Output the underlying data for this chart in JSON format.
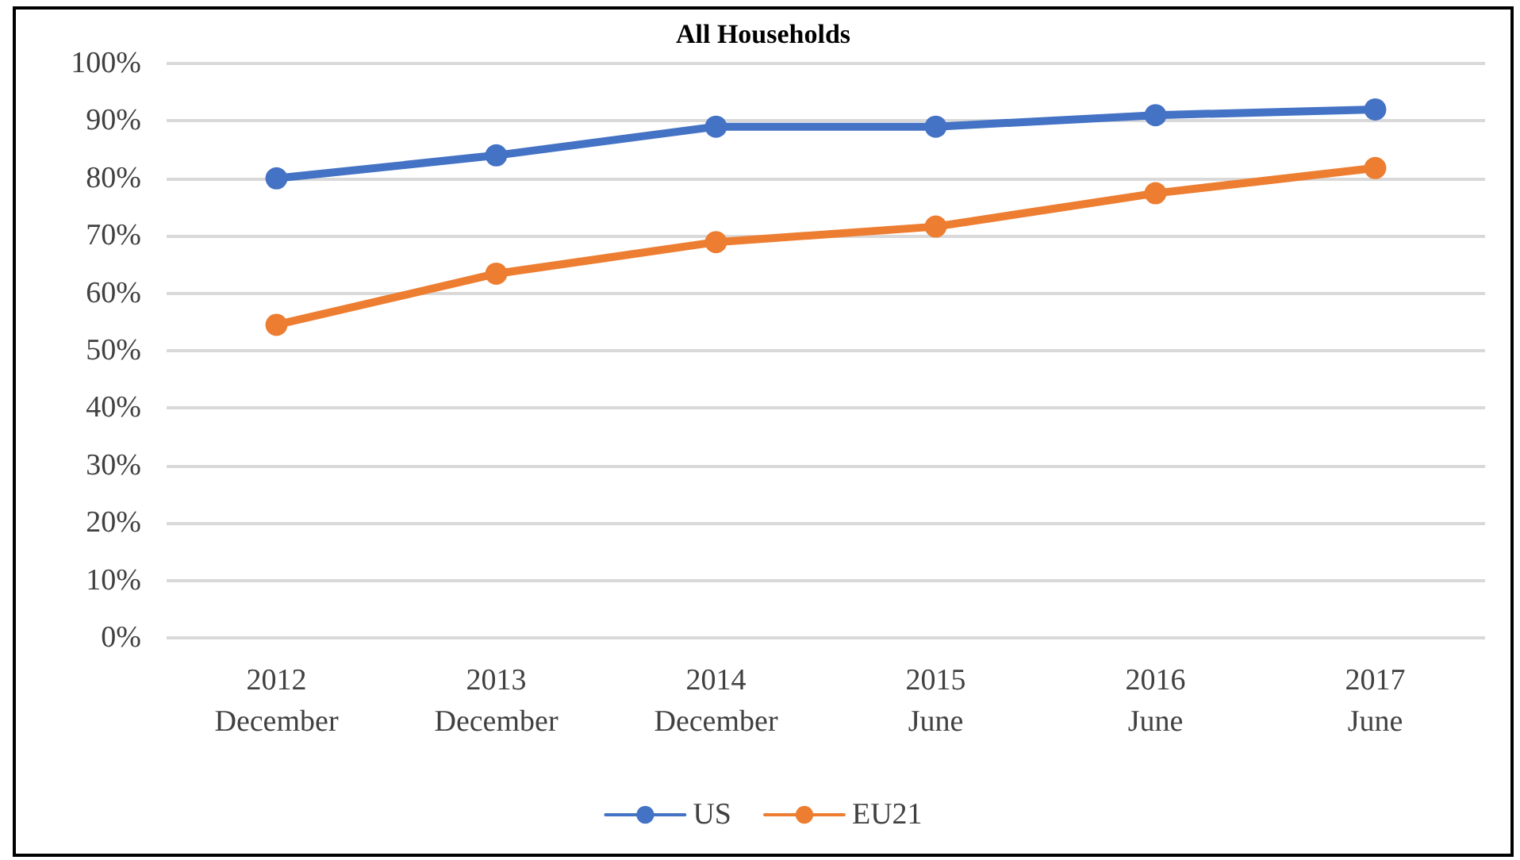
{
  "chart_data": {
    "type": "line",
    "title": "All Households",
    "categories": [
      "2012\nDecember",
      "2013\nDecember",
      "2014\nDecember",
      "2015\nJune",
      "2016\nJune",
      "2017\nJune"
    ],
    "series": [
      {
        "name": "US",
        "color": "#4472c4",
        "values": [
          80,
          84,
          89,
          89,
          91,
          92
        ]
      },
      {
        "name": "EU21",
        "color": "#ed7d31",
        "values": [
          54.5,
          63.4,
          68.9,
          71.6,
          77.4,
          81.8
        ]
      }
    ],
    "ylim": [
      0,
      100
    ],
    "yticks": [
      {
        "value": 0,
        "label": "0%"
      },
      {
        "value": 10,
        "label": "10%"
      },
      {
        "value": 20,
        "label": "20%"
      },
      {
        "value": 30,
        "label": "30%"
      },
      {
        "value": 40,
        "label": "40%"
      },
      {
        "value": 50,
        "label": "50%"
      },
      {
        "value": 60,
        "label": "60%"
      },
      {
        "value": 70,
        "label": "70%"
      },
      {
        "value": 80,
        "label": "80%"
      },
      {
        "value": 90,
        "label": "90%"
      },
      {
        "value": 100,
        "label": "100%"
      }
    ],
    "grid": "y",
    "legend": "bottom",
    "marker": "circle",
    "line_style": "solid"
  }
}
